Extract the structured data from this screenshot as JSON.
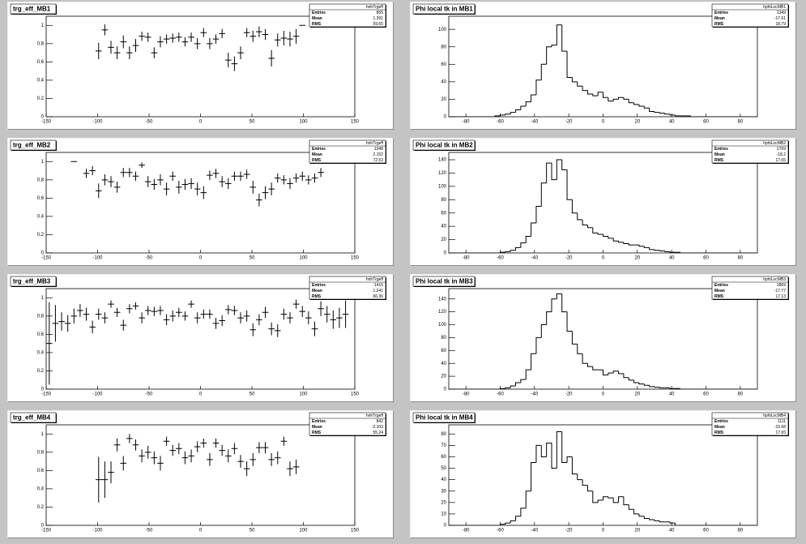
{
  "chart_data": [
    {
      "type": "errorbar",
      "title": "trg_eff_MB1",
      "stats": {
        "name": "hnhTrgeff",
        "rows": [
          {
            "label": "Entries",
            "value": 865
          },
          {
            "label": "Mean",
            "value": 1.391
          },
          {
            "label": "RMS",
            "value": 59.65
          }
        ]
      },
      "xlim": [
        -150,
        150
      ],
      "ylim": [
        0,
        1.1
      ],
      "xticks": [
        -150,
        -100,
        -50,
        0,
        50,
        100,
        150
      ],
      "yticks": [
        0,
        0.2,
        0.4,
        0.6,
        0.8,
        1
      ],
      "xerr": 3,
      "color": "#000000",
      "x": [
        -99,
        -93,
        -87,
        -81,
        -75,
        -69,
        -63,
        -57,
        -51,
        -45,
        -39,
        -33,
        -27,
        -21,
        -15,
        -9,
        -3,
        3,
        9,
        15,
        21,
        27,
        33,
        39,
        45,
        51,
        57,
        63,
        69,
        75,
        81,
        87,
        93,
        99
      ],
      "values": [
        0.72,
        0.95,
        0.76,
        0.7,
        0.82,
        0.7,
        0.78,
        0.88,
        0.87,
        0.7,
        0.82,
        0.85,
        0.86,
        0.87,
        0.82,
        0.87,
        0.8,
        0.92,
        0.8,
        0.85,
        0.91,
        0.62,
        0.58,
        0.7,
        0.92,
        0.88,
        0.93,
        0.9,
        0.64,
        0.84,
        0.86,
        0.85,
        0.88,
        1
      ],
      "errors": [
        0.09,
        0.06,
        0.07,
        0.07,
        0.07,
        0.07,
        0.07,
        0.05,
        0.05,
        0.06,
        0.06,
        0.05,
        0.05,
        0.05,
        0.05,
        0.05,
        0.06,
        0.05,
        0.06,
        0.05,
        0.05,
        0.08,
        0.08,
        0.07,
        0.05,
        0.06,
        0.06,
        0.06,
        0.09,
        0.07,
        0.08,
        0.08,
        0.08,
        0
      ]
    },
    {
      "type": "histogram",
      "title": "Phi local tk in MB1",
      "stats": {
        "name": "hphiLocMB1",
        "rows": [
          {
            "label": "Entries",
            "value": 1349
          },
          {
            "label": "Mean",
            "value": -17.61
          },
          {
            "label": "RMS",
            "value": 18.79
          }
        ]
      },
      "xlim": [
        -90,
        90
      ],
      "ylim": [
        0,
        115
      ],
      "xticks": [
        -80,
        -60,
        -40,
        -20,
        0,
        20,
        40,
        60,
        80
      ],
      "yticks": [
        0,
        20,
        40,
        60,
        80,
        100
      ],
      "color": "#000000",
      "bins": [
        -90,
        -87,
        -84,
        -81,
        -78,
        -75,
        -72,
        -69,
        -66,
        -63,
        -60,
        -57,
        -54,
        -51,
        -48,
        -45,
        -42,
        -39,
        -36,
        -33,
        -30,
        -27,
        -24,
        -21,
        -18,
        -15,
        -12,
        -9,
        -6,
        -3,
        0,
        3,
        6,
        9,
        12,
        15,
        18,
        21,
        24,
        27,
        30,
        33,
        36,
        39,
        42,
        45,
        48,
        51,
        54,
        57,
        60,
        63,
        66,
        69,
        72,
        75,
        78,
        81,
        84,
        87,
        90
      ],
      "counts": [
        0,
        0,
        0,
        0,
        0,
        0,
        0,
        0,
        0,
        1,
        2,
        3,
        5,
        8,
        12,
        17,
        25,
        42,
        60,
        80,
        82,
        105,
        75,
        45,
        40,
        35,
        30,
        26,
        24,
        28,
        22,
        18,
        20,
        22,
        20,
        16,
        14,
        12,
        10,
        6,
        5,
        4,
        3,
        2,
        1,
        1,
        1,
        0,
        0,
        0,
        0,
        0,
        0,
        0,
        0,
        0,
        0,
        0,
        0,
        0
      ]
    },
    {
      "type": "errorbar",
      "title": "trg_eff_MB2",
      "stats": {
        "name": "hnhTrgeff",
        "rows": [
          {
            "label": "Entries",
            "value": 1348
          },
          {
            "label": "Mean",
            "value": 2.152
          },
          {
            "label": "RMS",
            "value": 72.53
          }
        ]
      },
      "xlim": [
        -150,
        150
      ],
      "ylim": [
        0,
        1.1
      ],
      "xticks": [
        -150,
        -100,
        -50,
        0,
        50,
        100,
        150
      ],
      "yticks": [
        0,
        0.2,
        0.4,
        0.6,
        0.8,
        1
      ],
      "xerr": 3,
      "color": "#000000",
      "x": [
        -123,
        -111,
        -105,
        -99,
        -93,
        -87,
        -81,
        -75,
        -69,
        -63,
        -57,
        -51,
        -45,
        -39,
        -33,
        -27,
        -21,
        -15,
        -9,
        -3,
        3,
        9,
        15,
        21,
        27,
        33,
        39,
        45,
        51,
        57,
        63,
        69,
        75,
        81,
        87,
        93,
        99,
        105,
        111,
        117
      ],
      "values": [
        1,
        0.87,
        0.9,
        0.68,
        0.8,
        0.78,
        0.72,
        0.88,
        0.88,
        0.84,
        0.96,
        0.78,
        0.75,
        0.8,
        0.7,
        0.84,
        0.72,
        0.75,
        0.76,
        0.7,
        0.66,
        0.85,
        0.87,
        0.78,
        0.76,
        0.84,
        0.84,
        0.86,
        0.72,
        0.58,
        0.66,
        0.7,
        0.82,
        0.8,
        0.76,
        0.82,
        0.84,
        0.8,
        0.82,
        0.88
      ],
      "errors": [
        0,
        0.05,
        0.05,
        0.08,
        0.06,
        0.06,
        0.06,
        0.05,
        0.05,
        0.05,
        0.03,
        0.06,
        0.06,
        0.06,
        0.07,
        0.05,
        0.07,
        0.06,
        0.06,
        0.07,
        0.07,
        0.05,
        0.05,
        0.06,
        0.06,
        0.05,
        0.05,
        0.05,
        0.07,
        0.07,
        0.07,
        0.07,
        0.05,
        0.05,
        0.06,
        0.05,
        0.05,
        0.05,
        0.05,
        0.05
      ]
    },
    {
      "type": "histogram",
      "title": "Phi local tk in MB2",
      "stats": {
        "name": "hphiLocMB2",
        "rows": [
          {
            "label": "Entries",
            "value": 1769
          },
          {
            "label": "Mean",
            "value": -18.2
          },
          {
            "label": "RMS",
            "value": 17.65
          }
        ]
      },
      "xlim": [
        -90,
        90
      ],
      "ylim": [
        0,
        151
      ],
      "xticks": [
        -80,
        -60,
        -40,
        -20,
        0,
        20,
        40,
        60,
        80
      ],
      "yticks": [
        0,
        20,
        40,
        60,
        80,
        100,
        120,
        140
      ],
      "color": "#000000",
      "bins": [
        -90,
        -87,
        -84,
        -81,
        -78,
        -75,
        -72,
        -69,
        -66,
        -63,
        -60,
        -57,
        -54,
        -51,
        -48,
        -45,
        -42,
        -39,
        -36,
        -33,
        -30,
        -27,
        -24,
        -21,
        -18,
        -15,
        -12,
        -9,
        -6,
        -3,
        0,
        3,
        6,
        9,
        12,
        15,
        18,
        21,
        24,
        27,
        30,
        33,
        36,
        39,
        42,
        45,
        48,
        51,
        54,
        57,
        60,
        63,
        66,
        69,
        72,
        75,
        78,
        81,
        84,
        87,
        90
      ],
      "counts": [
        0,
        0,
        0,
        0,
        0,
        0,
        0,
        0,
        0,
        0,
        1,
        2,
        4,
        8,
        15,
        25,
        45,
        70,
        105,
        135,
        110,
        140,
        125,
        80,
        60,
        50,
        42,
        38,
        30,
        28,
        25,
        22,
        18,
        16,
        14,
        12,
        12,
        10,
        8,
        5,
        4,
        3,
        2,
        1,
        1,
        0,
        0,
        0,
        0,
        0,
        0,
        0,
        0,
        0,
        0,
        0,
        0,
        0,
        0,
        0
      ]
    },
    {
      "type": "errorbar",
      "title": "trg_eff_MB3",
      "stats": {
        "name": "hnhTrgeff",
        "rows": [
          {
            "label": "Entries",
            "value": 1416
          },
          {
            "label": "Mean",
            "value": 1.241
          },
          {
            "label": "RMS",
            "value": 66.36
          }
        ]
      },
      "xlim": [
        -150,
        150
      ],
      "ylim": [
        0,
        1.1
      ],
      "xticks": [
        -150,
        -100,
        -50,
        0,
        50,
        100,
        150
      ],
      "yticks": [
        0,
        0.2,
        0.4,
        0.6,
        0.8,
        1
      ],
      "xerr": 3,
      "color": "#000000",
      "x": [
        -147,
        -141,
        -135,
        -129,
        -123,
        -117,
        -111,
        -105,
        -99,
        -93,
        -87,
        -81,
        -75,
        -69,
        -63,
        -57,
        -51,
        -45,
        -39,
        -33,
        -27,
        -21,
        -15,
        -9,
        -3,
        3,
        9,
        15,
        21,
        27,
        33,
        39,
        45,
        51,
        57,
        63,
        69,
        75,
        81,
        87,
        93,
        99,
        105,
        111,
        117,
        123,
        129,
        135,
        141
      ],
      "values": [
        0.5,
        0.72,
        0.74,
        0.72,
        0.8,
        0.86,
        0.82,
        0.68,
        0.82,
        0.78,
        0.93,
        0.84,
        0.7,
        0.88,
        0.91,
        0.78,
        0.86,
        0.85,
        0.86,
        0.76,
        0.8,
        0.84,
        0.8,
        0.93,
        0.78,
        0.82,
        0.82,
        0.72,
        0.75,
        0.87,
        0.86,
        0.78,
        0.8,
        0.65,
        0.76,
        0.84,
        0.66,
        0.64,
        0.82,
        0.78,
        0.93,
        0.85,
        0.78,
        0.66,
        0.88,
        0.82,
        0.76,
        0.78,
        0.82
      ],
      "errors": [
        0.45,
        0.2,
        0.1,
        0.09,
        0.08,
        0.07,
        0.07,
        0.07,
        0.06,
        0.06,
        0.04,
        0.05,
        0.06,
        0.05,
        0.04,
        0.06,
        0.05,
        0.05,
        0.05,
        0.06,
        0.06,
        0.05,
        0.05,
        0.04,
        0.06,
        0.05,
        0.05,
        0.06,
        0.06,
        0.05,
        0.05,
        0.06,
        0.06,
        0.07,
        0.06,
        0.06,
        0.07,
        0.07,
        0.06,
        0.06,
        0.05,
        0.06,
        0.07,
        0.08,
        0.08,
        0.09,
        0.1,
        0.11,
        0.15
      ]
    },
    {
      "type": "histogram",
      "title": "Phi local tk in MB3",
      "stats": {
        "name": "hphiLocMB3",
        "rows": [
          {
            "label": "Entries",
            "value": 1869
          },
          {
            "label": "Mean",
            "value": -17.77
          },
          {
            "label": "RMS",
            "value": 17.13
          }
        ]
      },
      "xlim": [
        -90,
        90
      ],
      "ylim": [
        0,
        156
      ],
      "xticks": [
        -80,
        -60,
        -40,
        -20,
        0,
        20,
        40,
        60,
        80
      ],
      "yticks": [
        0,
        20,
        40,
        60,
        80,
        100,
        120,
        140
      ],
      "color": "#000000",
      "bins": [
        -90,
        -87,
        -84,
        -81,
        -78,
        -75,
        -72,
        -69,
        -66,
        -63,
        -60,
        -57,
        -54,
        -51,
        -48,
        -45,
        -42,
        -39,
        -36,
        -33,
        -30,
        -27,
        -24,
        -21,
        -18,
        -15,
        -12,
        -9,
        -6,
        -3,
        0,
        3,
        6,
        9,
        12,
        15,
        18,
        21,
        24,
        27,
        30,
        33,
        36,
        39,
        42,
        45,
        48,
        51,
        54,
        57,
        60,
        63,
        66,
        69,
        72,
        75,
        78,
        81,
        84,
        87,
        90
      ],
      "counts": [
        0,
        0,
        0,
        0,
        0,
        0,
        0,
        0,
        0,
        0,
        1,
        2,
        5,
        10,
        15,
        30,
        55,
        80,
        100,
        120,
        140,
        148,
        120,
        90,
        70,
        55,
        40,
        35,
        30,
        30,
        22,
        25,
        28,
        24,
        18,
        14,
        10,
        8,
        6,
        4,
        3,
        2,
        2,
        1,
        1,
        0,
        0,
        0,
        0,
        0,
        0,
        0,
        0,
        0,
        0,
        0,
        0,
        0,
        0,
        0
      ]
    },
    {
      "type": "errorbar",
      "title": "trg_eff_MB4",
      "stats": {
        "name": "hnhTrgeff",
        "rows": [
          {
            "label": "Entries",
            "value": 842
          },
          {
            "label": "Mean",
            "value": -2.103
          },
          {
            "label": "RMS",
            "value": 55.24
          }
        ]
      },
      "xlim": [
        -150,
        150
      ],
      "ylim": [
        0,
        1.1
      ],
      "xticks": [
        -150,
        -100,
        -50,
        0,
        50,
        100,
        150
      ],
      "yticks": [
        0,
        0.2,
        0.4,
        0.6,
        0.8,
        1
      ],
      "xerr": 3,
      "color": "#000000",
      "x": [
        -99,
        -93,
        -87,
        -81,
        -75,
        -69,
        -63,
        -57,
        -51,
        -45,
        -39,
        -33,
        -27,
        -21,
        -15,
        -9,
        -3,
        3,
        9,
        15,
        21,
        27,
        33,
        39,
        45,
        51,
        57,
        63,
        69,
        75,
        81,
        87,
        93
      ],
      "values": [
        0.5,
        0.5,
        0.58,
        0.88,
        0.68,
        0.95,
        0.88,
        0.76,
        0.8,
        0.74,
        0.68,
        0.92,
        0.82,
        0.84,
        0.74,
        0.76,
        0.86,
        0.9,
        0.72,
        0.9,
        0.82,
        0.76,
        0.84,
        0.7,
        0.62,
        0.72,
        0.85,
        0.85,
        0.72,
        0.74,
        0.92,
        0.62,
        0.64
      ],
      "errors": [
        0.25,
        0.2,
        0.12,
        0.07,
        0.08,
        0.05,
        0.06,
        0.07,
        0.07,
        0.07,
        0.08,
        0.05,
        0.06,
        0.06,
        0.07,
        0.07,
        0.06,
        0.05,
        0.07,
        0.05,
        0.06,
        0.07,
        0.06,
        0.07,
        0.08,
        0.07,
        0.06,
        0.06,
        0.07,
        0.07,
        0.05,
        0.08,
        0.08
      ]
    },
    {
      "type": "histogram",
      "title": "Phi local tk in MB4",
      "stats": {
        "name": "hphiLocMB4",
        "rows": [
          {
            "label": "Entries",
            "value": 1111
          },
          {
            "label": "Mean",
            "value": -15.68
          },
          {
            "label": "RMS",
            "value": 17.65
          }
        ]
      },
      "xlim": [
        -90,
        90
      ],
      "ylim": [
        0,
        88
      ],
      "xticks": [
        -80,
        -60,
        -40,
        -20,
        0,
        20,
        40,
        60,
        80
      ],
      "yticks": [
        0,
        10,
        20,
        30,
        40,
        50,
        60,
        70,
        80
      ],
      "color": "#000000",
      "bins": [
        -90,
        -87,
        -84,
        -81,
        -78,
        -75,
        -72,
        -69,
        -66,
        -63,
        -60,
        -57,
        -54,
        -51,
        -48,
        -45,
        -42,
        -39,
        -36,
        -33,
        -30,
        -27,
        -24,
        -21,
        -18,
        -15,
        -12,
        -9,
        -6,
        -3,
        0,
        3,
        6,
        9,
        12,
        15,
        18,
        21,
        24,
        27,
        30,
        33,
        36,
        39,
        42,
        45,
        48,
        51,
        54,
        57,
        60,
        63,
        66,
        69,
        72,
        75,
        78,
        81,
        84,
        87,
        90
      ],
      "counts": [
        0,
        0,
        0,
        0,
        0,
        0,
        0,
        0,
        0,
        0,
        1,
        2,
        4,
        8,
        15,
        30,
        55,
        70,
        60,
        72,
        50,
        82,
        55,
        60,
        45,
        40,
        35,
        30,
        20,
        22,
        25,
        24,
        20,
        25,
        18,
        14,
        10,
        8,
        6,
        5,
        4,
        3,
        3,
        2,
        0,
        0,
        0,
        0,
        0,
        0,
        0,
        0,
        0,
        0,
        0,
        0,
        0,
        0,
        0,
        0
      ]
    }
  ]
}
